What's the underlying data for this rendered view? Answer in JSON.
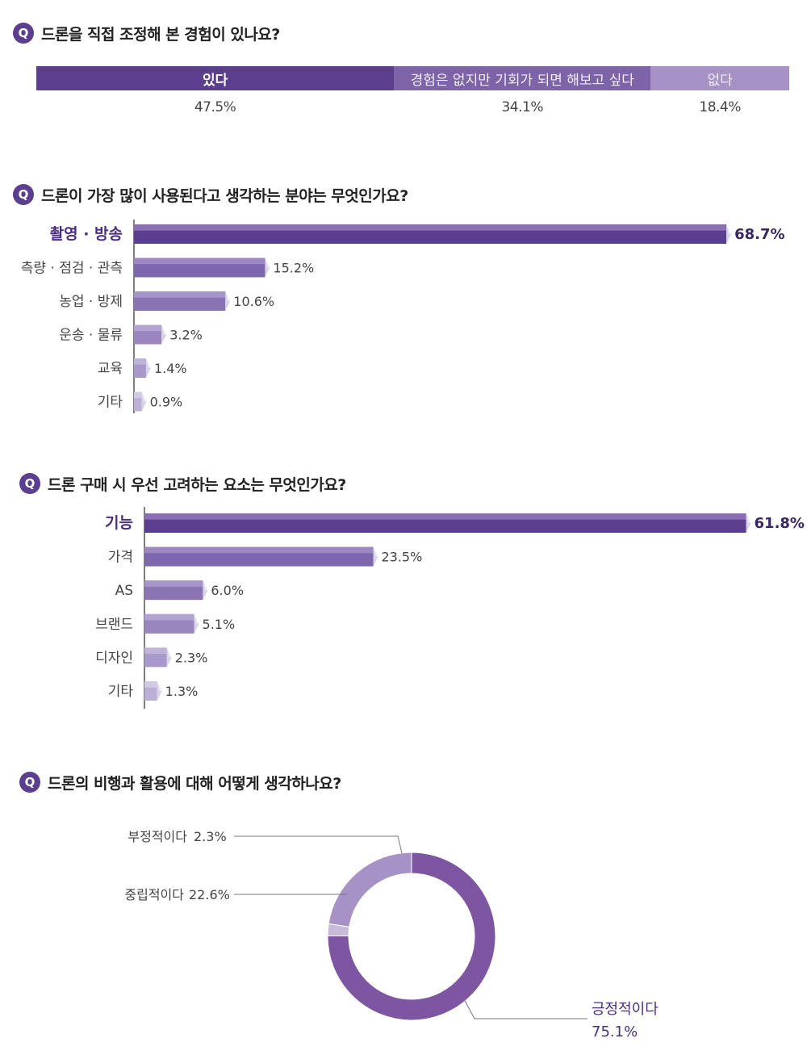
{
  "q1": {
    "badge": "Q",
    "title": "드론을 직접 조정해 본 경험이 있나요?",
    "chart_data": {
      "type": "bar",
      "orientation": "horizontal-stacked",
      "categories": [
        "있다",
        "경험은 없지만 기회가 되면 해보고 싶다",
        "없다"
      ],
      "values": [
        47.5,
        34.1,
        18.4
      ],
      "value_labels": [
        "47.5%",
        "34.1%",
        "18.4%"
      ],
      "colors": [
        "#5c3e8e",
        "#7d63a8",
        "#a692c5"
      ]
    }
  },
  "q2": {
    "badge": "Q",
    "title": "드론이 가장 많이 사용된다고 생각하는 분야는 무엇인가요?",
    "chart_data": {
      "type": "bar",
      "orientation": "horizontal",
      "categories": [
        "촬영 · 방송",
        "측량 · 점검 · 관측",
        "농업 · 방제",
        "운송 · 물류",
        "교육",
        "기타"
      ],
      "values": [
        68.7,
        15.2,
        10.6,
        3.2,
        1.4,
        0.9
      ],
      "value_labels": [
        "68.7%",
        "15.2%",
        "10.6%",
        "3.2%",
        "1.4%",
        "0.9%"
      ],
      "xlim": [
        0,
        70
      ],
      "highlight_index": 0
    }
  },
  "q3": {
    "badge": "Q",
    "title": "드론 구매 시 우선 고려하는 요소는 무엇인가요?",
    "chart_data": {
      "type": "bar",
      "orientation": "horizontal",
      "categories": [
        "기능",
        "가격",
        "AS",
        "브랜드",
        "디자인",
        "기타"
      ],
      "values": [
        61.8,
        23.5,
        6.0,
        5.1,
        2.3,
        1.3
      ],
      "value_labels": [
        "61.8%",
        "23.5%",
        "6.0%",
        "5.1%",
        "2.3%",
        "1.3%"
      ],
      "xlim": [
        0,
        63
      ],
      "highlight_index": 0
    }
  },
  "q4": {
    "badge": "Q",
    "title": "드론의 비행과 활용에 대해 어떻게 생각하나요?",
    "chart_data": {
      "type": "pie",
      "style": "donut",
      "slices": [
        {
          "label": "긍정적이다",
          "value": 75.1,
          "value_label": "75.1%",
          "color": "#7d55a0"
        },
        {
          "label": "부정적이다",
          "value": 2.3,
          "value_label": "2.3%",
          "color": "#c8bcda"
        },
        {
          "label": "중립적이다",
          "value": 22.6,
          "value_label": "22.6%",
          "color": "#a692c5"
        }
      ]
    }
  },
  "colors": {
    "accent": "#5c3e8e",
    "bar_dark": "#5c3e8e",
    "bar_top_highlight": "#8a6fb5",
    "bar_mid": "#8a73b3",
    "bar_light": "#b3a3d1"
  }
}
